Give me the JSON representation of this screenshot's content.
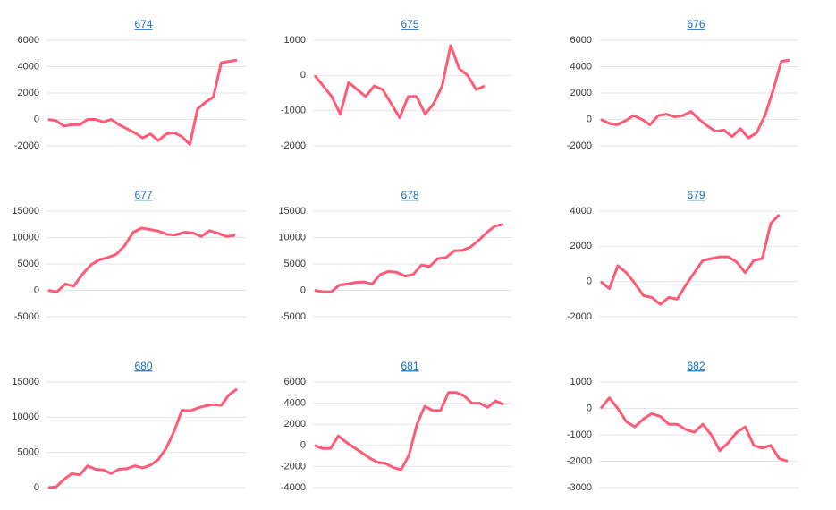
{
  "chart_data": [
    {
      "type": "line",
      "title": "674",
      "color": "#ff5b77",
      "grid": true,
      "ylim": [
        -2000,
        6000
      ],
      "yticks": [
        6000,
        4000,
        2000,
        0,
        -2000
      ],
      "values": [
        0,
        -100,
        -500,
        -400,
        -400,
        0,
        0,
        -200,
        0,
        -400,
        -700,
        -1000,
        -1400,
        -1100,
        -1600,
        -1100,
        -1000,
        -1300,
        -1900,
        800,
        1300,
        1700,
        4300,
        4400,
        4500
      ]
    },
    {
      "type": "line",
      "title": "675",
      "color": "#ff5b77",
      "grid": true,
      "ylim": [
        -2000,
        1000
      ],
      "yticks": [
        1000,
        0,
        -1000,
        -2000
      ],
      "values": [
        0,
        -300,
        -600,
        -1100,
        -200,
        -400,
        -600,
        -300,
        -400,
        -800,
        -1200,
        -600,
        -600,
        -1100,
        -800,
        -300,
        850,
        200,
        0,
        -400,
        -300
      ]
    },
    {
      "type": "line",
      "title": "676",
      "color": "#ff5b77",
      "grid": true,
      "ylim": [
        -2000,
        6000
      ],
      "yticks": [
        6000,
        4000,
        2000,
        0,
        -2000
      ],
      "values": [
        0,
        -300,
        -400,
        -100,
        300,
        0,
        -400,
        300,
        400,
        200,
        300,
        600,
        0,
        -500,
        -900,
        -800,
        -1300,
        -700,
        -1400,
        -1000,
        300,
        2200,
        4400,
        4500
      ]
    },
    {
      "type": "line",
      "title": "677",
      "color": "#ff5b77",
      "grid": true,
      "ylim": [
        -5000,
        15000
      ],
      "yticks": [
        15000,
        10000,
        5000,
        0,
        -5000
      ],
      "values": [
        0,
        -300,
        1200,
        800,
        3000,
        4800,
        5800,
        6200,
        6800,
        8500,
        11000,
        11800,
        11500,
        11200,
        10600,
        10500,
        11000,
        10900,
        10200,
        11300,
        10800,
        10200,
        10400
      ]
    },
    {
      "type": "line",
      "title": "678",
      "color": "#ff5b77",
      "grid": true,
      "ylim": [
        -5000,
        15000
      ],
      "yticks": [
        15000,
        10000,
        5000,
        0,
        -5000
      ],
      "values": [
        0,
        -300,
        -300,
        1000,
        1200,
        1500,
        1600,
        1200,
        3000,
        3600,
        3400,
        2700,
        3000,
        4800,
        4500,
        6000,
        6200,
        7500,
        7600,
        8200,
        9500,
        11000,
        12200,
        12500
      ]
    },
    {
      "type": "line",
      "title": "679",
      "color": "#ff5b77",
      "grid": true,
      "ylim": [
        -2000,
        4000
      ],
      "yticks": [
        4000,
        2000,
        0,
        -2000
      ],
      "values": [
        0,
        -400,
        900,
        500,
        -100,
        -800,
        -900,
        -1300,
        -900,
        -1000,
        -200,
        500,
        1200,
        1300,
        1400,
        1400,
        1100,
        500,
        1200,
        1300,
        3300,
        3800
      ]
    },
    {
      "type": "line",
      "title": "680",
      "color": "#ff5b77",
      "grid": true,
      "ylim": [
        0,
        15000
      ],
      "yticks": [
        15000,
        10000,
        5000,
        0
      ],
      "values": [
        0,
        100,
        1200,
        2000,
        1800,
        3100,
        2600,
        2500,
        2000,
        2600,
        2700,
        3100,
        2800,
        3200,
        4000,
        5600,
        8000,
        11000,
        10900,
        11300,
        11600,
        11800,
        11700,
        13200,
        14000
      ]
    },
    {
      "type": "line",
      "title": "681",
      "color": "#ff5b77",
      "grid": true,
      "ylim": [
        -4000,
        6000
      ],
      "yticks": [
        6000,
        4000,
        2000,
        0,
        -2000,
        -4000
      ],
      "values": [
        0,
        -300,
        -300,
        900,
        300,
        -200,
        -700,
        -1200,
        -1600,
        -1700,
        -2100,
        -2300,
        -900,
        2000,
        3700,
        3300,
        3300,
        5000,
        5000,
        4700,
        4000,
        4000,
        3600,
        4200,
        3900
      ]
    },
    {
      "type": "line",
      "title": "682",
      "color": "#ff5b77",
      "grid": true,
      "ylim": [
        -3000,
        1000
      ],
      "yticks": [
        1000,
        0,
        -1000,
        -2000,
        -3000
      ],
      "values": [
        0,
        400,
        0,
        -500,
        -700,
        -400,
        -200,
        -300,
        -600,
        -600,
        -800,
        -900,
        -600,
        -1000,
        -1600,
        -1300,
        -900,
        -700,
        -1400,
        -1500,
        -1400,
        -1900,
        -2000
      ]
    }
  ]
}
